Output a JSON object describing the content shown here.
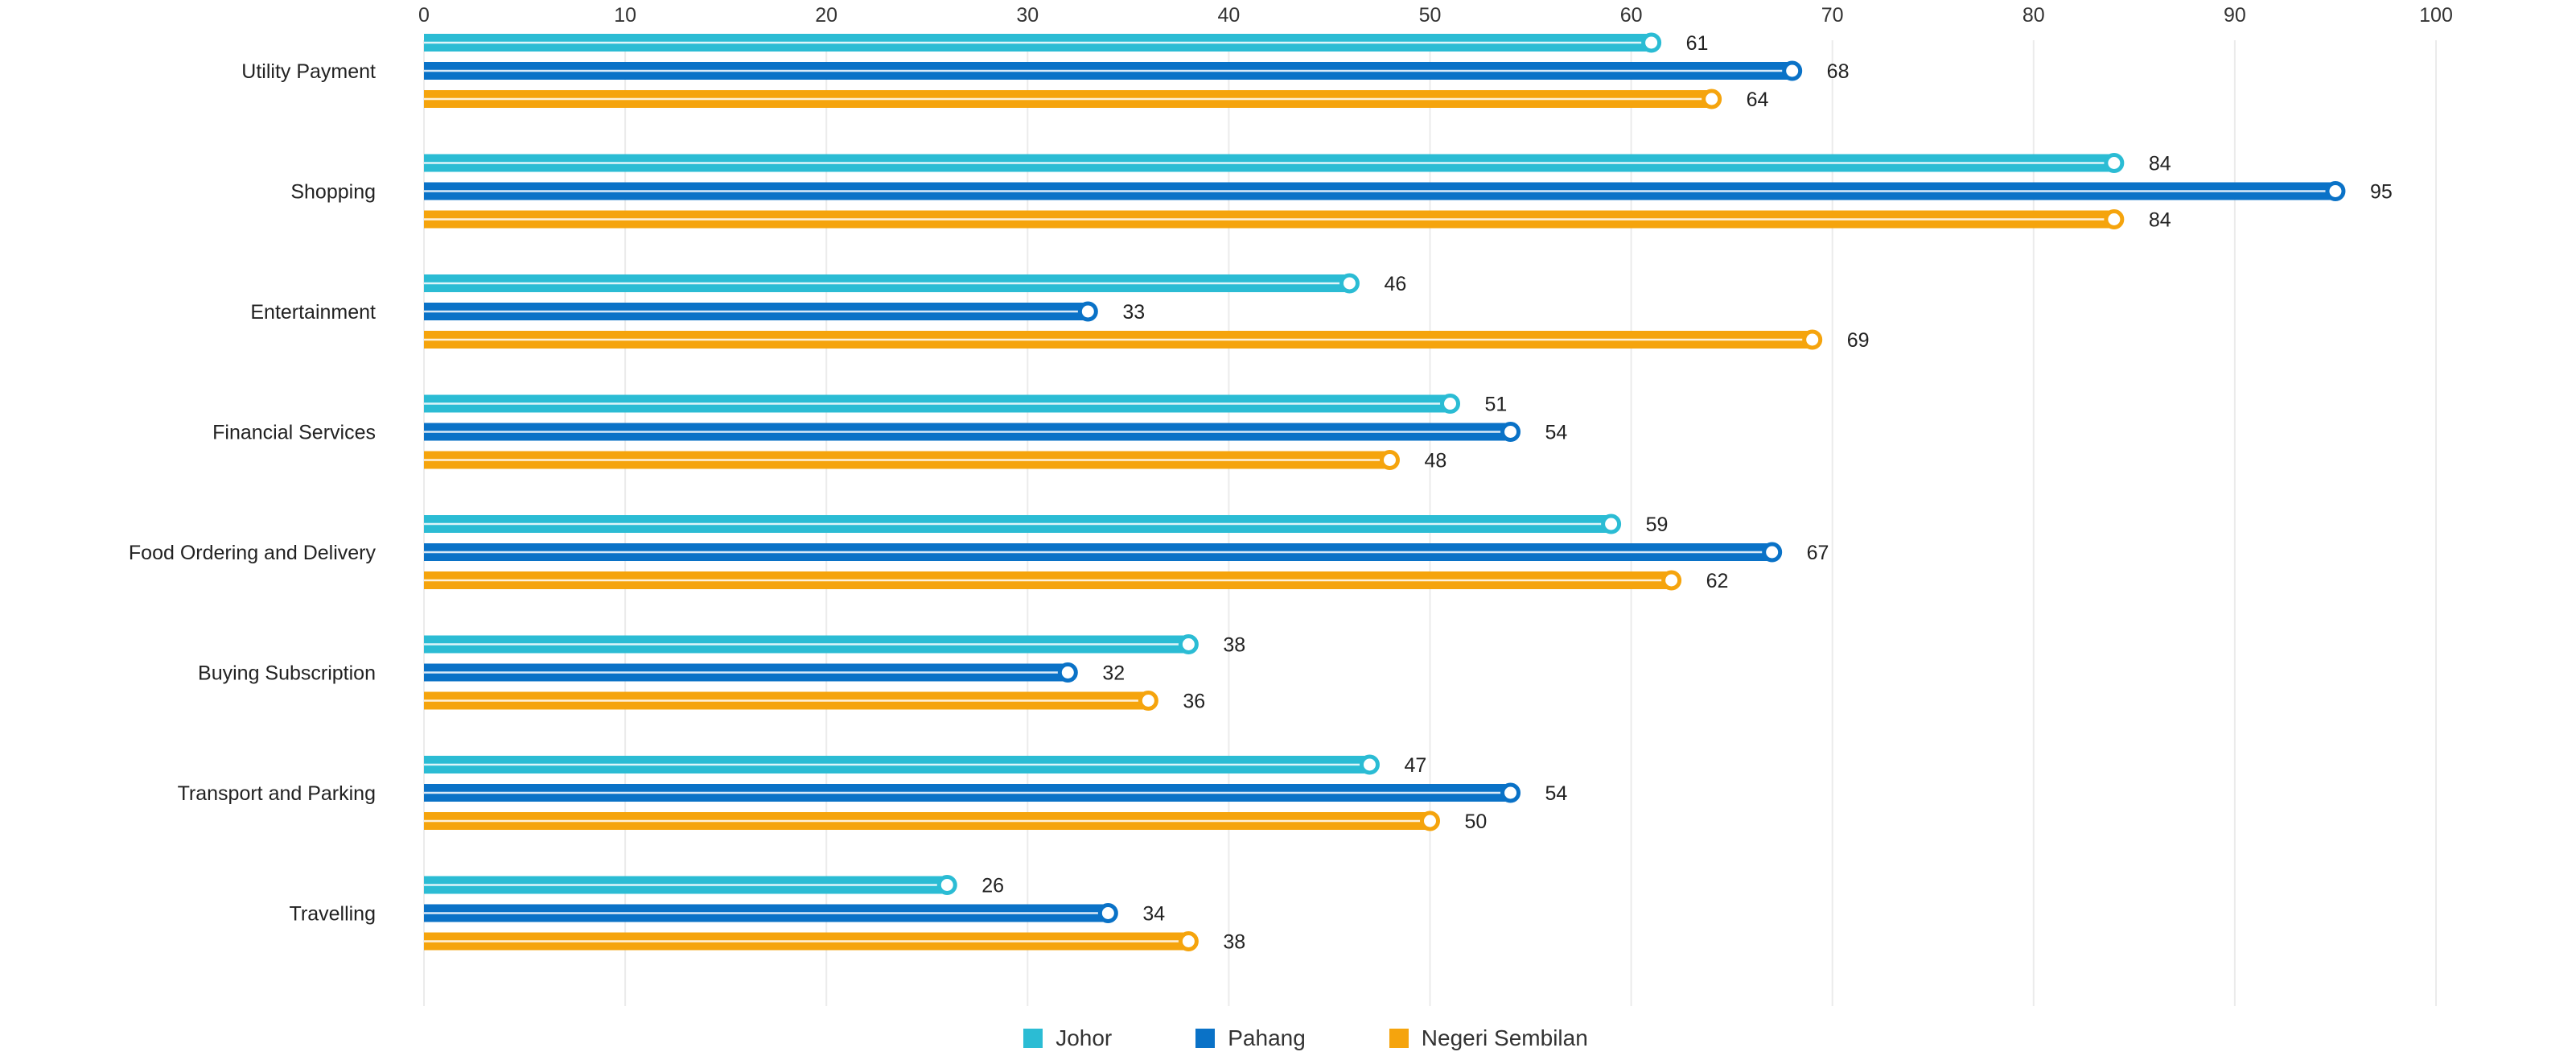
{
  "chart_data": {
    "type": "bar",
    "orientation": "horizontal",
    "categories": [
      "Utility Payment",
      "Shopping",
      "Entertainment",
      "Financial Services",
      "Food Ordering and Delivery",
      "Buying Subscription",
      "Transport and Parking",
      "Travelling"
    ],
    "series": [
      {
        "name": "Johor",
        "color": "#2bbcd4",
        "values": [
          61,
          84,
          46,
          51,
          59,
          38,
          47,
          26
        ]
      },
      {
        "name": "Pahang",
        "color": "#0a72c7",
        "values": [
          68,
          95,
          33,
          54,
          67,
          32,
          54,
          34
        ]
      },
      {
        "name": "Negeri Sembilan",
        "color": "#f5a40d",
        "values": [
          64,
          84,
          69,
          48,
          62,
          36,
          50,
          38
        ]
      }
    ],
    "xlim": [
      0,
      100
    ],
    "xticks": [
      0,
      10,
      20,
      30,
      40,
      50,
      60,
      70,
      80,
      90,
      100
    ],
    "x_axis_position": "top",
    "grid": "vertical",
    "legend_position": "bottom-center",
    "data_labels": true
  }
}
